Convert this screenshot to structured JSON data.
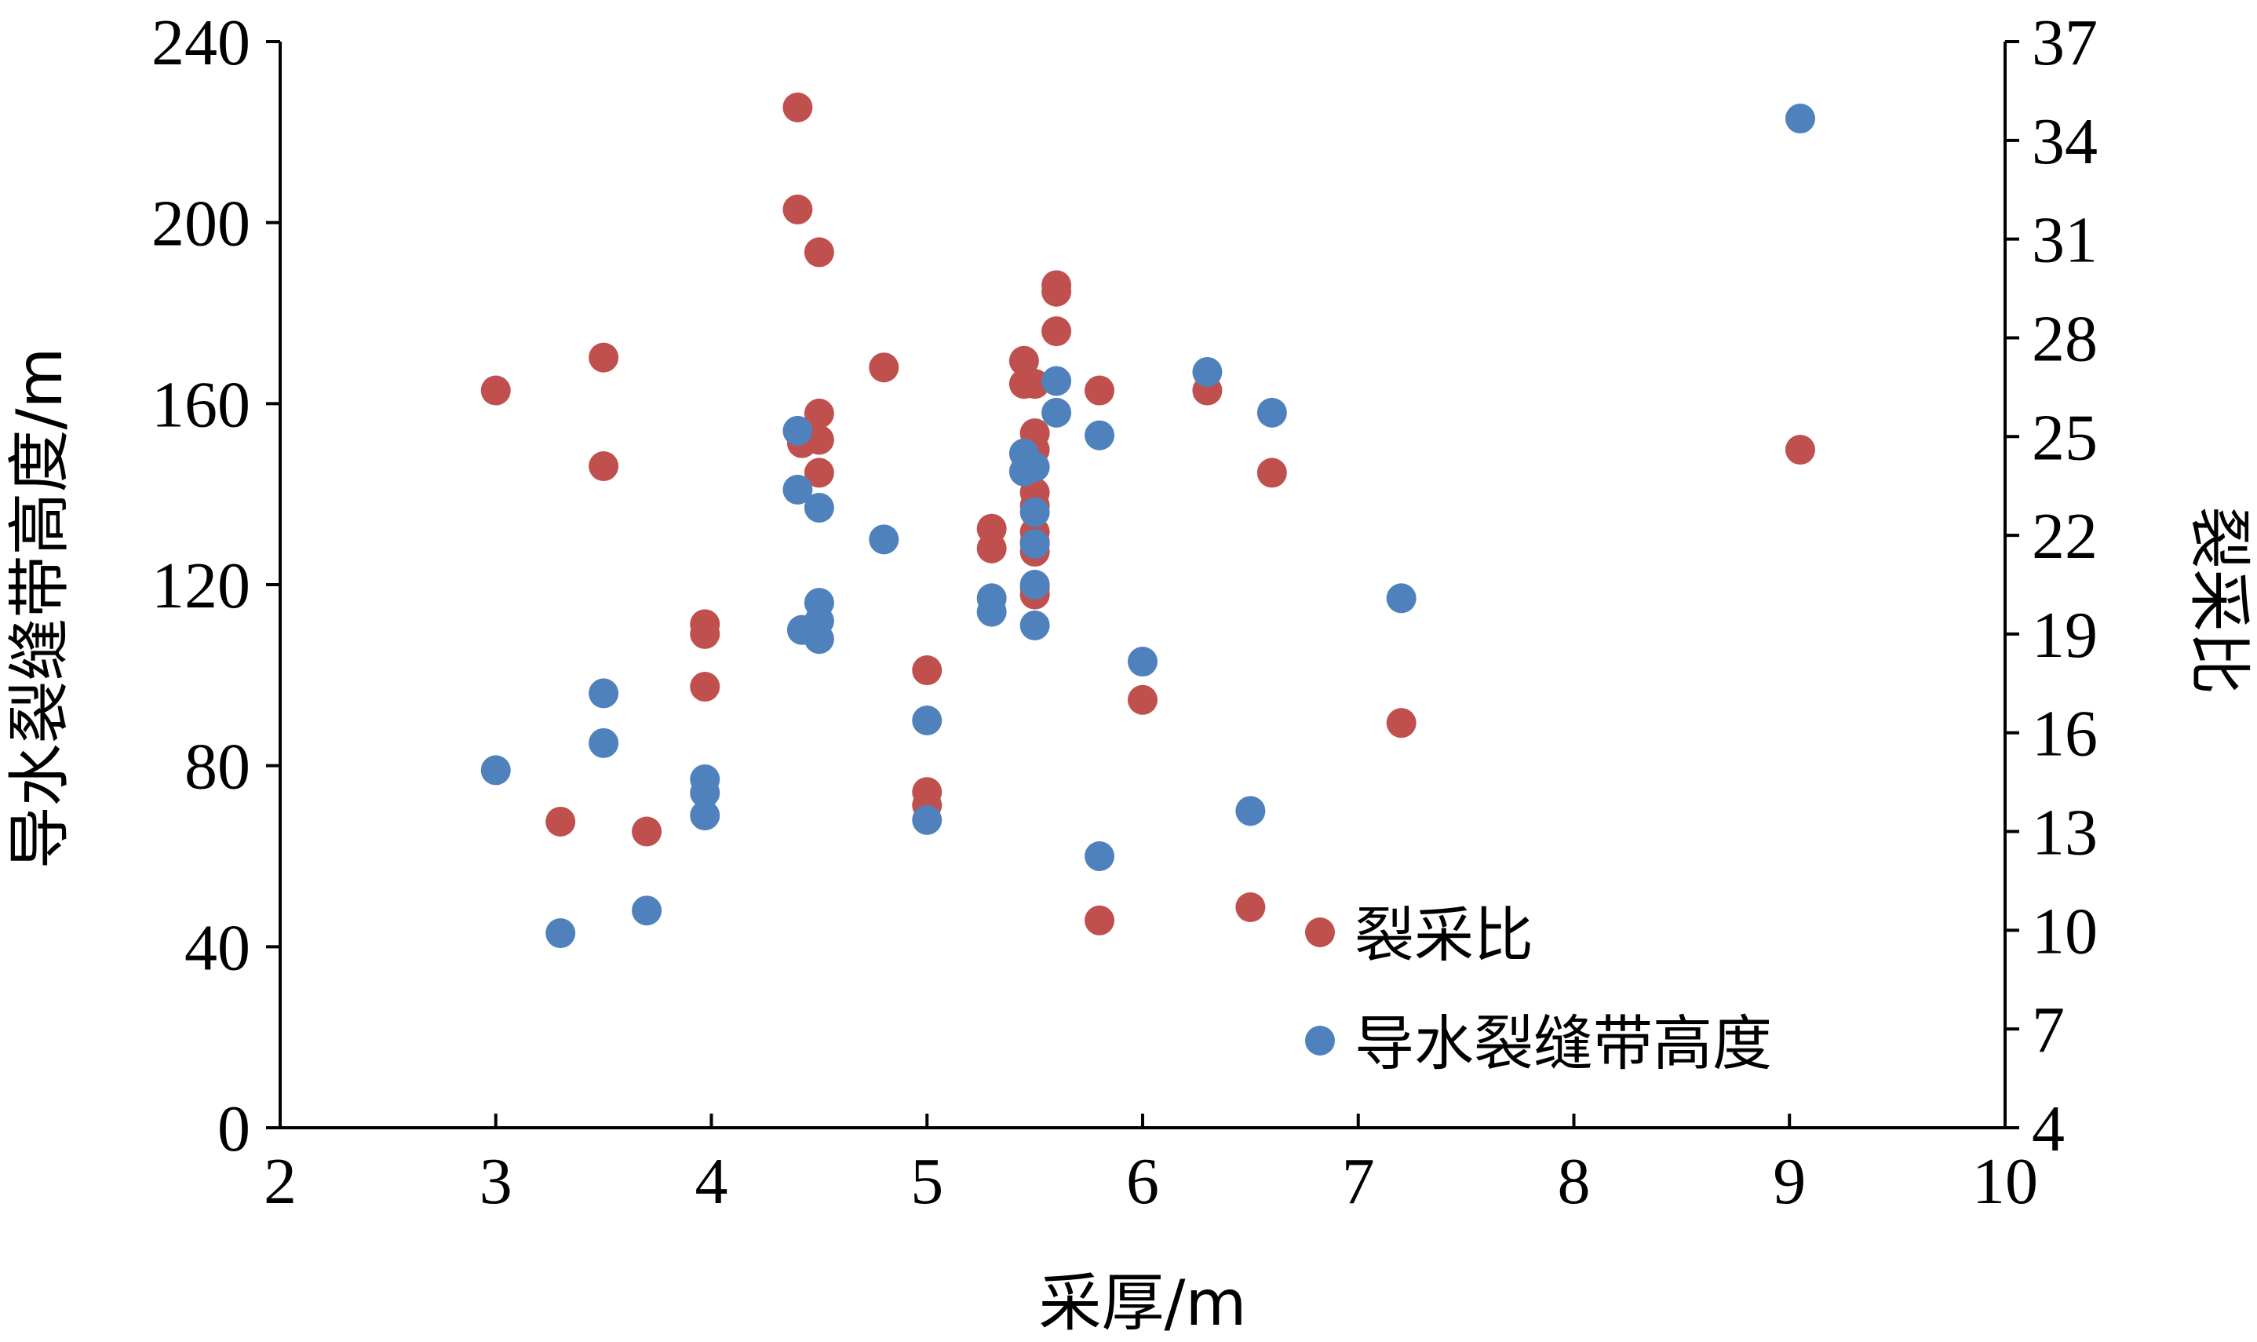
{
  "chart_data": {
    "type": "scatter",
    "xlabel": "采厚/m",
    "ylabel_left": "导水裂缝带高度/m",
    "ylabel_right": "裂采比",
    "xlim": [
      2,
      10
    ],
    "ylim_left": [
      0,
      240
    ],
    "ylim_right": [
      4,
      37
    ],
    "x_ticks": [
      2,
      3,
      4,
      5,
      6,
      7,
      8,
      9,
      10
    ],
    "y_left_ticks": [
      0,
      40,
      80,
      120,
      160,
      200,
      240
    ],
    "y_right_ticks": [
      4,
      7,
      10,
      13,
      16,
      19,
      22,
      25,
      28,
      31,
      34,
      37
    ],
    "grid": false,
    "legend_position": "bottom-right",
    "series": [
      {
        "name": "裂采比",
        "axis": "right",
        "color": "#c0504d",
        "points": [
          [
            3.0,
            26.4
          ],
          [
            3.3,
            13.3
          ],
          [
            3.5,
            27.4
          ],
          [
            3.5,
            24.1
          ],
          [
            3.7,
            13.0
          ],
          [
            3.97,
            19.3
          ],
          [
            3.97,
            19.0
          ],
          [
            3.97,
            17.4
          ],
          [
            4.4,
            35.0
          ],
          [
            4.4,
            31.9
          ],
          [
            4.42,
            24.8
          ],
          [
            4.5,
            30.6
          ],
          [
            4.5,
            25.7
          ],
          [
            4.5,
            24.9
          ],
          [
            4.5,
            23.9
          ],
          [
            4.8,
            27.1
          ],
          [
            5.0,
            17.9
          ],
          [
            5.0,
            14.2
          ],
          [
            5.0,
            13.8
          ],
          [
            5.3,
            22.2
          ],
          [
            5.3,
            21.6
          ],
          [
            5.45,
            27.3
          ],
          [
            5.45,
            26.6
          ],
          [
            5.5,
            26.6
          ],
          [
            5.5,
            25.1
          ],
          [
            5.5,
            24.6
          ],
          [
            5.5,
            23.3
          ],
          [
            5.5,
            22.9
          ],
          [
            5.5,
            22.1
          ],
          [
            5.5,
            21.8
          ],
          [
            5.5,
            21.5
          ],
          [
            5.5,
            20.4
          ],
          [
            5.5,
            20.2
          ],
          [
            5.6,
            29.6
          ],
          [
            5.6,
            29.4
          ],
          [
            5.6,
            28.2
          ],
          [
            5.8,
            26.4
          ],
          [
            5.8,
            10.3
          ],
          [
            6.0,
            17.0
          ],
          [
            6.3,
            26.4
          ],
          [
            6.5,
            10.7
          ],
          [
            6.6,
            23.9
          ],
          [
            7.2,
            16.3
          ],
          [
            9.05,
            24.6
          ]
        ]
      },
      {
        "name": "导水裂缝带高度",
        "axis": "left",
        "color": "#4f81bd",
        "points": [
          [
            3.0,
            79
          ],
          [
            3.3,
            43
          ],
          [
            3.5,
            96
          ],
          [
            3.5,
            85
          ],
          [
            3.7,
            48
          ],
          [
            3.97,
            77
          ],
          [
            3.97,
            74
          ],
          [
            3.97,
            69
          ],
          [
            4.4,
            154
          ],
          [
            4.4,
            141
          ],
          [
            4.42,
            110
          ],
          [
            4.5,
            137
          ],
          [
            4.5,
            116
          ],
          [
            4.5,
            112
          ],
          [
            4.5,
            108
          ],
          [
            4.8,
            130
          ],
          [
            5.0,
            90
          ],
          [
            5.0,
            68
          ],
          [
            5.3,
            117
          ],
          [
            5.3,
            114
          ],
          [
            5.45,
            149
          ],
          [
            5.45,
            145
          ],
          [
            5.5,
            146
          ],
          [
            5.5,
            136
          ],
          [
            5.5,
            129
          ],
          [
            5.5,
            120
          ],
          [
            5.5,
            111
          ],
          [
            5.6,
            165
          ],
          [
            5.6,
            158
          ],
          [
            5.8,
            153
          ],
          [
            5.8,
            60
          ],
          [
            6.0,
            103
          ],
          [
            6.3,
            167
          ],
          [
            6.5,
            70
          ],
          [
            6.6,
            158
          ],
          [
            7.2,
            117
          ],
          [
            9.05,
            223
          ]
        ]
      }
    ]
  }
}
